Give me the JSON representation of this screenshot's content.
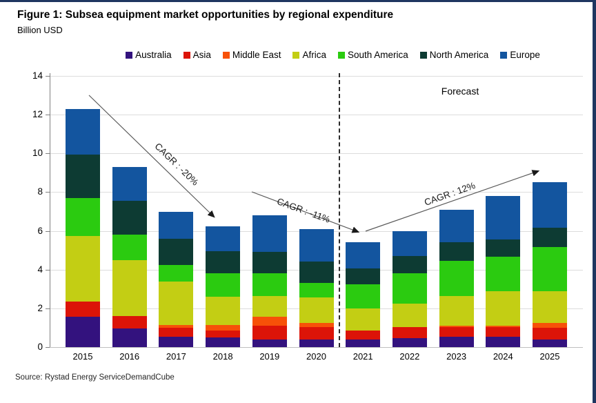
{
  "figure": {
    "title": "Figure 1: Subsea equipment market opportunities by regional expenditure",
    "subtitle": "Billion USD",
    "source": "Source: Rystad Energy ServiceDemandCube"
  },
  "annotations": {
    "forecast_label": "Forecast",
    "cagr_decline_1": "CAGR : -20%",
    "cagr_decline_2": "CAGR : -11%",
    "cagr_growth": "CAGR : 12%"
  },
  "colors": {
    "frame_border": "#1f3660",
    "grid": "#dcdcdc",
    "axis": "#7f7f7f",
    "arrow": "#595959"
  },
  "chart_data": {
    "type": "bar",
    "stacked": true,
    "title": "Subsea equipment market opportunities by regional expenditure",
    "ylabel": "Billion USD",
    "ylim": [
      0,
      14
    ],
    "yticks": [
      0,
      2,
      4,
      6,
      8,
      10,
      12,
      14
    ],
    "grid": "horizontal",
    "legend_position": "top",
    "forecast_divider_between": [
      "2020",
      "2021"
    ],
    "categories": [
      "2015",
      "2016",
      "2017",
      "2018",
      "2019",
      "2020",
      "2021",
      "2022",
      "2023",
      "2024",
      "2025"
    ],
    "series": [
      {
        "name": "Australia",
        "color": "#33127e",
        "values": [
          1.55,
          0.95,
          0.55,
          0.5,
          0.4,
          0.4,
          0.4,
          0.45,
          0.55,
          0.55,
          0.4
        ]
      },
      {
        "name": "Asia",
        "color": "#dc1408",
        "values": [
          0.8,
          0.65,
          0.45,
          0.35,
          0.7,
          0.65,
          0.45,
          0.6,
          0.5,
          0.5,
          0.6
        ]
      },
      {
        "name": "Middle East",
        "color": "#f75108",
        "values": [
          0.0,
          0.0,
          0.15,
          0.3,
          0.45,
          0.2,
          0.0,
          0.0,
          0.05,
          0.05,
          0.25
        ]
      },
      {
        "name": "Africa",
        "color": "#c3ce14",
        "values": [
          3.4,
          2.9,
          2.25,
          1.45,
          1.1,
          1.3,
          1.15,
          1.2,
          1.55,
          1.8,
          1.65
        ]
      },
      {
        "name": "South America",
        "color": "#2bcb10",
        "values": [
          1.95,
          1.3,
          0.85,
          1.2,
          1.15,
          0.75,
          1.25,
          1.55,
          1.8,
          1.75,
          2.25
        ]
      },
      {
        "name": "North America",
        "color": "#0d3b33",
        "values": [
          2.25,
          1.75,
          1.35,
          1.15,
          1.1,
          1.1,
          0.8,
          0.9,
          0.95,
          0.9,
          1.0
        ]
      },
      {
        "name": "Europe",
        "color": "#13559f",
        "values": [
          2.35,
          1.75,
          1.4,
          1.3,
          1.9,
          1.7,
          1.35,
          1.3,
          1.7,
          2.25,
          2.35
        ]
      }
    ],
    "totals": [
      12.3,
      9.3,
      7.0,
      6.25,
      6.8,
      6.1,
      5.4,
      6.0,
      7.1,
      7.8,
      8.5
    ]
  }
}
